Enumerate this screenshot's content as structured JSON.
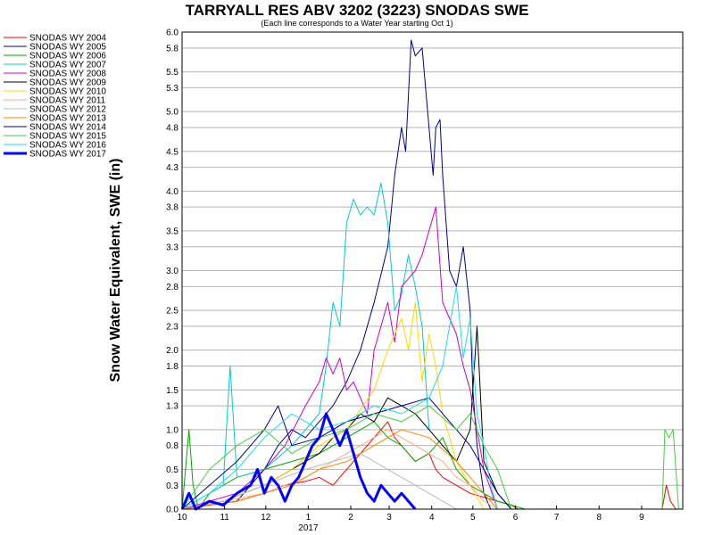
{
  "chart_data": {
    "type": "line",
    "title": "TARRYALL RES ABV 3202 (3223) SNODAS SWE",
    "subtitle": "(Each line corresponds to a Water Year starting Oct 1)",
    "ylabel": "Snow Water Equivalent, SWE (in)",
    "xlabel": "",
    "ylim": [
      0,
      6.0
    ],
    "xlim": [
      0,
      365
    ],
    "y_ticks": [
      "0.0",
      "0.3",
      "0.5",
      "0.8",
      "1.0",
      "1.3",
      "1.5",
      "1.8",
      "2.0",
      "2.3",
      "2.5",
      "2.8",
      "3.0",
      "3.3",
      "3.5",
      "3.8",
      "4.0",
      "4.3",
      "4.5",
      "4.8",
      "5.0",
      "5.3",
      "5.5",
      "5.8",
      "6.0"
    ],
    "x_ticks": [
      {
        "label": "10",
        "day": 0
      },
      {
        "label": "11",
        "day": 31
      },
      {
        "label": "12",
        "day": 61
      },
      {
        "label": "1",
        "day": 92
      },
      {
        "label": "2",
        "day": 123
      },
      {
        "label": "3",
        "day": 151
      },
      {
        "label": "4",
        "day": 182
      },
      {
        "label": "5",
        "day": 212
      },
      {
        "label": "6",
        "day": 243
      },
      {
        "label": "7",
        "day": 273
      },
      {
        "label": "8",
        "day": 304
      },
      {
        "label": "9",
        "day": 335
      }
    ],
    "x_sublabel": {
      "label": "2017",
      "day": 92
    },
    "grid": true,
    "legend_position": "left",
    "series": [
      {
        "name": "SNODAS WY 2004",
        "color": "#ff0000",
        "width": 1,
        "x": [
          0,
          20,
          40,
          60,
          75,
          90,
          100,
          110,
          120,
          130,
          140,
          150,
          155,
          160,
          170,
          180,
          185,
          190,
          200,
          210,
          220,
          230,
          240,
          245,
          250,
          350,
          353,
          356,
          360
        ],
        "y": [
          0,
          0.05,
          0.1,
          0.2,
          0.3,
          0.35,
          0.4,
          0.3,
          0.5,
          0.7,
          0.9,
          1.1,
          0.9,
          0.8,
          0.6,
          0.7,
          0.5,
          0.4,
          0.3,
          0.2,
          0.15,
          0.1,
          0.05,
          0,
          0,
          0,
          0.3,
          0.1,
          0
        ]
      },
      {
        "name": "SNODAS WY 2005",
        "color": "#00008b",
        "width": 1,
        "x": [
          0,
          40,
          50,
          60,
          70,
          80,
          90,
          100,
          110,
          120,
          130,
          140,
          150,
          155,
          160,
          163,
          167,
          170,
          175,
          178,
          180,
          183,
          185,
          188,
          190,
          195,
          200,
          205,
          210,
          212,
          215,
          220,
          225
        ],
        "y": [
          0,
          0.1,
          0.3,
          0.5,
          0.8,
          1.0,
          0.9,
          1.1,
          1.3,
          1.6,
          2.0,
          2.6,
          3.3,
          4.2,
          4.8,
          4.5,
          5.9,
          5.7,
          5.8,
          5.2,
          4.8,
          4.2,
          4.8,
          4.9,
          4.2,
          3.0,
          2.8,
          3.3,
          2.5,
          1.5,
          0.8,
          0.2,
          0
        ]
      },
      {
        "name": "SNODAS WY 2006",
        "color": "#00aa00",
        "width": 1,
        "x": [
          0,
          5,
          8,
          12,
          20,
          40,
          60,
          80,
          100,
          120,
          140,
          150,
          160,
          170,
          180,
          190,
          200,
          210,
          220,
          230,
          240,
          250
        ],
        "y": [
          0,
          1.0,
          0.3,
          0,
          0.2,
          0.4,
          0.5,
          0.6,
          0.7,
          0.9,
          1.1,
          0.9,
          0.8,
          0.6,
          0.7,
          0.9,
          0.5,
          0.3,
          0.2,
          0.1,
          0.05,
          0
        ]
      },
      {
        "name": "SNODAS WY 2007",
        "color": "#00cccc",
        "width": 1,
        "x": [
          0,
          30,
          35,
          40,
          60,
          80,
          100,
          105,
          110,
          115,
          120,
          125,
          130,
          135,
          140,
          145,
          150,
          155,
          160,
          165,
          170,
          175,
          180
        ],
        "y": [
          0,
          0.3,
          1.8,
          0.4,
          0.5,
          0.8,
          1.2,
          1.8,
          2.6,
          2.3,
          3.6,
          3.9,
          3.7,
          3.8,
          3.7,
          4.1,
          3.6,
          2.5,
          2.7,
          3.2,
          2.8,
          2.3,
          1.0
        ]
      },
      {
        "name": "SNODAS WY 2008",
        "color": "#cc00cc",
        "width": 1,
        "x": [
          0,
          40,
          60,
          75,
          90,
          100,
          105,
          110,
          115,
          120,
          125,
          130,
          135,
          140,
          145,
          150,
          155,
          160,
          165,
          170,
          175,
          180,
          185,
          190,
          195,
          200,
          205,
          210,
          215,
          220,
          230
        ],
        "y": [
          0,
          0.2,
          0.5,
          0.8,
          1.3,
          1.6,
          1.9,
          1.7,
          1.9,
          1.5,
          1.6,
          1.4,
          1.2,
          2.0,
          2.3,
          2.6,
          2.1,
          2.8,
          2.9,
          3.0,
          3.2,
          3.5,
          3.8,
          2.6,
          2.4,
          2.2,
          1.8,
          1.5,
          1.0,
          0.5,
          0
        ]
      },
      {
        "name": "SNODAS WY 2009",
        "color": "#000000",
        "width": 1,
        "x": [
          0,
          30,
          60,
          80,
          100,
          110,
          120,
          130,
          140,
          150,
          160,
          170,
          180,
          190,
          200,
          210,
          215,
          220,
          230,
          240
        ],
        "y": [
          0,
          0.1,
          0.3,
          0.5,
          0.7,
          0.9,
          1.0,
          1.2,
          1.1,
          1.4,
          1.3,
          1.2,
          1.0,
          0.8,
          0.6,
          1.0,
          2.3,
          0.6,
          0.2,
          0
        ]
      },
      {
        "name": "SNODAS WY 2010",
        "color": "#ffd700",
        "width": 1,
        "x": [
          0,
          30,
          60,
          80,
          100,
          120,
          140,
          150,
          160,
          165,
          170,
          175,
          180,
          185,
          190,
          200,
          210,
          220
        ],
        "y": [
          0,
          0.1,
          0.3,
          0.5,
          0.8,
          1.0,
          1.5,
          2.0,
          2.4,
          2.0,
          2.6,
          1.6,
          2.2,
          1.8,
          1.2,
          0.6,
          0.3,
          0
        ]
      },
      {
        "name": "SNODAS WY 2011",
        "color": "#ffaa88",
        "width": 1,
        "x": [
          0,
          30,
          60,
          90,
          110,
          130,
          150,
          170,
          190,
          200,
          210,
          220,
          230
        ],
        "y": [
          0,
          0.1,
          0.2,
          0.4,
          0.6,
          0.8,
          1.0,
          0.8,
          0.6,
          0.4,
          0.3,
          0.1,
          0
        ]
      },
      {
        "name": "SNODAS WY 2012",
        "color": "#bbbbbb",
        "width": 1,
        "x": [
          0,
          30,
          60,
          90,
          110,
          130,
          150,
          160,
          170,
          180,
          190,
          200
        ],
        "y": [
          0,
          0.1,
          0.3,
          0.5,
          0.6,
          0.7,
          0.5,
          0.4,
          0.3,
          0.2,
          0.1,
          0
        ]
      },
      {
        "name": "SNODAS WY 2013",
        "color": "#ff8800",
        "width": 1,
        "x": [
          0,
          40,
          60,
          80,
          100,
          120,
          140,
          160,
          180,
          200,
          210,
          220,
          230
        ],
        "y": [
          0,
          0.1,
          0.2,
          0.3,
          0.5,
          0.6,
          0.8,
          1.0,
          0.9,
          0.6,
          0.4,
          0.2,
          0
        ]
      },
      {
        "name": "SNODAS WY 2014",
        "color": "#000088",
        "width": 1,
        "x": [
          0,
          20,
          40,
          60,
          70,
          80,
          100,
          120,
          140,
          160,
          180,
          200,
          210,
          220,
          230,
          240
        ],
        "y": [
          0,
          0.3,
          0.6,
          1.0,
          1.3,
          0.8,
          0.9,
          1.1,
          1.2,
          1.3,
          1.4,
          1.0,
          0.8,
          0.5,
          0.2,
          0
        ]
      },
      {
        "name": "SNODAS WY 2015",
        "color": "#44cc44",
        "width": 1,
        "x": [
          0,
          20,
          40,
          60,
          80,
          100,
          120,
          140,
          160,
          180,
          200,
          210,
          220,
          230,
          240,
          350,
          352,
          355,
          358,
          362
        ],
        "y": [
          0,
          0.5,
          0.8,
          1.0,
          0.7,
          0.9,
          1.0,
          1.2,
          1.1,
          1.3,
          1.0,
          1.2,
          0.8,
          0.5,
          0,
          0,
          1.0,
          0.9,
          1.0,
          0
        ]
      },
      {
        "name": "SNODAS WY 2016",
        "color": "#22dddd",
        "width": 1,
        "x": [
          0,
          20,
          40,
          60,
          80,
          100,
          120,
          140,
          160,
          180,
          190,
          200,
          205,
          210,
          215,
          220,
          225,
          230
        ],
        "y": [
          0,
          0.2,
          0.5,
          0.9,
          1.2,
          1.0,
          1.1,
          1.3,
          1.2,
          1.4,
          1.8,
          2.8,
          1.9,
          2.4,
          1.2,
          0.8,
          0.3,
          0
        ]
      },
      {
        "name": "SNODAS WY 2017",
        "color": "#0000ff",
        "width": 3,
        "x": [
          0,
          5,
          10,
          20,
          30,
          40,
          50,
          55,
          60,
          65,
          70,
          75,
          80,
          85,
          90,
          95,
          100,
          105,
          110,
          115,
          120,
          125,
          130,
          135,
          140,
          145,
          150,
          155,
          160,
          165,
          170
        ],
        "y": [
          0,
          0.2,
          0,
          0.1,
          0.05,
          0.2,
          0.3,
          0.5,
          0.2,
          0.4,
          0.3,
          0.1,
          0.3,
          0.4,
          0.6,
          0.8,
          0.9,
          1.2,
          1.0,
          0.8,
          1.0,
          0.7,
          0.4,
          0.2,
          0.1,
          0.3,
          0.2,
          0.1,
          0.2,
          0.1,
          0
        ]
      }
    ]
  }
}
